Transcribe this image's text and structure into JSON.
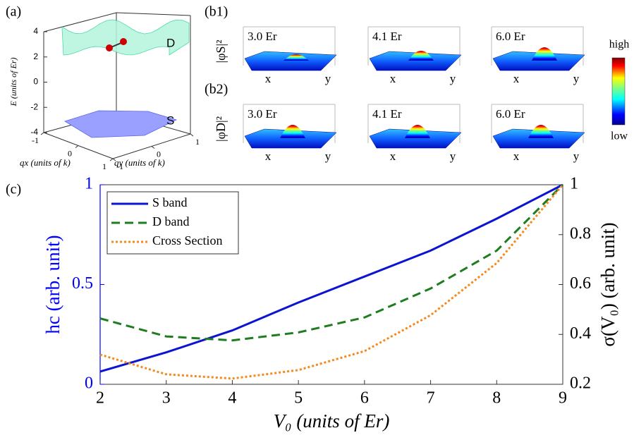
{
  "chart_data": [
    {
      "type": "surface3d",
      "label": "(a)",
      "zlabel": "E (units of Er)",
      "zlim": [
        -4,
        4
      ],
      "zticks": [
        -4,
        -2,
        0,
        2,
        4
      ],
      "xlabel": "qx (units of k)",
      "xlim": [
        -1,
        1
      ],
      "xticks": [
        -1,
        0,
        1
      ],
      "ylabel": "qy (units of k)",
      "ylim": [
        -1,
        1
      ],
      "yticks": [
        -1,
        0,
        1
      ],
      "band_labels": [
        "D",
        "S"
      ]
    },
    {
      "type": "surface-grid",
      "rows": [
        {
          "label": "(b1)",
          "ylabel": "|φS|²",
          "panels": [
            {
              "title": "3.0 Er",
              "xlabel": "x",
              "ylabel": "y"
            },
            {
              "title": "4.1 Er",
              "xlabel": "x",
              "ylabel": "y"
            },
            {
              "title": "6.0 Er",
              "xlabel": "x",
              "ylabel": "y"
            }
          ]
        },
        {
          "label": "(b2)",
          "ylabel": "|φD|²",
          "panels": [
            {
              "title": "3.0 Er",
              "xlabel": "x",
              "ylabel": "y"
            },
            {
              "title": "4.1 Er",
              "xlabel": "x",
              "ylabel": "y"
            },
            {
              "title": "6.0 Er",
              "xlabel": "x",
              "ylabel": "y"
            }
          ]
        }
      ],
      "colorbar_labels": [
        "high",
        "low"
      ]
    },
    {
      "type": "line",
      "label": "(c)",
      "xlabel": "V₀ (units of Er)",
      "ylabel": "hc (arb. unit)",
      "y2label": "σ(V₀) (arb. unit)",
      "x": [
        2,
        3,
        4,
        5,
        6,
        7,
        8,
        9
      ],
      "xlim": [
        2,
        9
      ],
      "xticks": [
        2,
        3,
        4,
        5,
        6,
        7,
        8,
        9
      ],
      "ylim": [
        0,
        1
      ],
      "yticks": [
        0,
        0.5,
        1
      ],
      "y2lim": [
        0.2,
        1
      ],
      "y2ticks": [
        0.2,
        0.4,
        0.6,
        0.8,
        1
      ],
      "legend": "upper-left",
      "series": [
        {
          "name": "S band",
          "color": "#0a14d2",
          "dash": "solid",
          "values": [
            0.064,
            0.16,
            0.27,
            0.41,
            0.54,
            0.67,
            0.83,
            1.0
          ]
        },
        {
          "name": "D band",
          "color": "#1e7d1e",
          "dash": "dashed",
          "values": [
            0.33,
            0.24,
            0.22,
            0.26,
            0.335,
            0.48,
            0.67,
            1.0
          ]
        },
        {
          "name": "Cross Section",
          "color": "#f5891e",
          "dash": "dotted",
          "axis": "y2",
          "values": [
            0.319,
            0.24,
            0.223,
            0.257,
            0.333,
            0.477,
            0.686,
            1.0
          ]
        }
      ]
    }
  ]
}
